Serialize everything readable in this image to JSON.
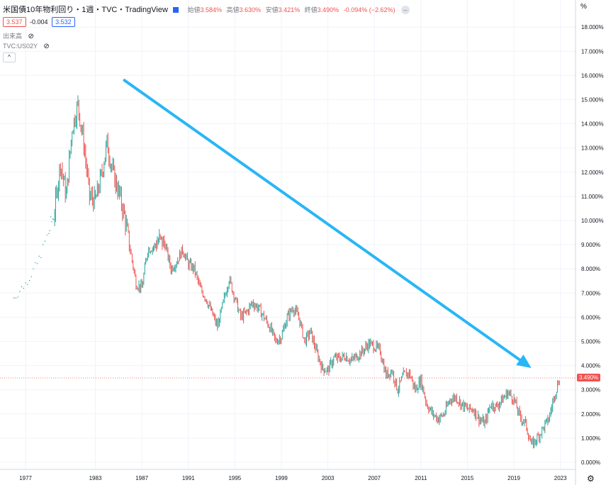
{
  "header": {
    "title": "米国債10年物利回り・1週・TVC・TradingView",
    "ohlc": [
      {
        "label": "始値",
        "value": "3.584%"
      },
      {
        "label": "高値",
        "value": "3.630%"
      },
      {
        "label": "安値",
        "value": "3.421%"
      },
      {
        "label": "終値",
        "value": "3.490%"
      }
    ],
    "change": "-0.094% (−2.62%)",
    "minimize_glyph": "–",
    "bid": "3.537",
    "spread": "-0.004",
    "ask": "3.532",
    "volume_label": "出来高",
    "compare_label": "TVC:US02Y",
    "collapse_glyph": "^",
    "corner_glyph": "%",
    "gear_glyph": "⚙"
  },
  "colors": {
    "up": "#26a69a",
    "down": "#ef5350",
    "arrow": "#29b6f6",
    "grid": "#f0f3fa",
    "price_line": "#ef5350"
  },
  "chart_data": {
    "type": "candlestick",
    "title": "",
    "x": [
      1976,
      1977,
      1978,
      1979,
      1979.5,
      1980,
      1980.5,
      1981,
      1981.5,
      1982,
      1982.5,
      1983,
      1983.5,
      1984,
      1984.5,
      1985,
      1985.5,
      1986,
      1986.5,
      1987,
      1987.5,
      1988,
      1988.5,
      1989,
      1989.5,
      1990,
      1990.5,
      1991,
      1991.5,
      1992,
      1992.5,
      1993,
      1993.5,
      1994,
      1994.5,
      1995,
      1995.5,
      1996,
      1996.5,
      1997,
      1997.5,
      1998,
      1998.5,
      1999,
      1999.5,
      2000,
      2000.5,
      2001,
      2001.5,
      2002,
      2002.5,
      2003,
      2003.5,
      2004,
      2004.5,
      2005,
      2005.5,
      2006,
      2006.5,
      2007,
      2007.5,
      2008,
      2008.5,
      2009,
      2009.5,
      2010,
      2010.5,
      2011,
      2011.5,
      2012,
      2012.5,
      2013,
      2013.5,
      2014,
      2014.5,
      2015,
      2015.5,
      2016,
      2016.5,
      2017,
      2017.5,
      2018,
      2018.5,
      2019,
      2019.5,
      2020,
      2020.5,
      2021,
      2021.5,
      2022,
      2022.5,
      2023
    ],
    "values": [
      6.8,
      7.4,
      8.2,
      9.5,
      10.4,
      12.4,
      11.0,
      13.8,
      14.8,
      13.2,
      11.0,
      10.8,
      11.8,
      13.2,
      12.0,
      11.2,
      10.2,
      8.8,
      7.4,
      7.2,
      8.8,
      8.9,
      9.2,
      9.0,
      8.0,
      8.3,
      8.8,
      8.2,
      8.0,
      7.2,
      6.8,
      6.2,
      5.6,
      6.6,
      7.6,
      6.8,
      6.0,
      6.2,
      6.6,
      6.4,
      6.0,
      5.6,
      5.0,
      5.2,
      6.0,
      6.4,
      6.0,
      5.0,
      5.4,
      4.6,
      3.9,
      3.8,
      4.3,
      4.3,
      4.4,
      4.2,
      4.4,
      4.6,
      4.9,
      4.8,
      4.6,
      3.6,
      3.8,
      3.0,
      3.6,
      3.7,
      3.0,
      3.4,
      2.4,
      2.0,
      1.8,
      2.0,
      2.6,
      2.7,
      2.4,
      2.2,
      2.2,
      1.8,
      1.6,
      2.4,
      2.3,
      2.6,
      2.9,
      2.6,
      1.9,
      1.6,
      0.7,
      1.0,
      1.4,
      1.8,
      2.8,
      3.6
    ],
    "last_price": 3.49,
    "last_price_label": "3.490%",
    "x_ticks": [
      "1977",
      "1983",
      "1987",
      "1991",
      "1995",
      "1999",
      "2003",
      "2007",
      "2011",
      "2015",
      "2019",
      "2023"
    ],
    "x_tick_years": [
      1977,
      1983,
      1987,
      1991,
      1995,
      1999,
      2003,
      2007,
      2011,
      2015,
      2019,
      2023
    ],
    "y_ticks": [
      "0.000%",
      "1.000%",
      "2.000%",
      "3.000%",
      "4.000%",
      "5.000%",
      "6.000%",
      "7.000%",
      "8.000%",
      "9.000%",
      "10.000%",
      "11.000%",
      "12.000%",
      "13.000%",
      "14.000%",
      "15.000%",
      "16.000%",
      "17.000%",
      "18.000%"
    ],
    "ylim": [
      0,
      18
    ],
    "xlim": [
      1974.8,
      2024.3
    ],
    "annotation_arrow": {
      "from": [
        1985.5,
        15.8
      ],
      "to": [
        2020.5,
        3.9
      ]
    },
    "grid": true
  }
}
